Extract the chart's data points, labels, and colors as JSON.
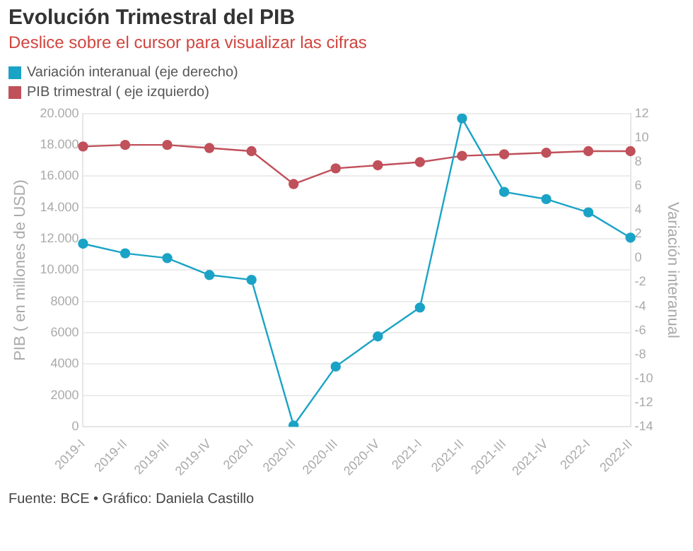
{
  "chart_data": {
    "type": "line",
    "title": "Evolución Trimestral del PIB",
    "subtitle": "Deslice sobre el cursor para visualizar las cifras",
    "ylabel": "PIB ( en millones de USD)",
    "y2label": "Variación interanual",
    "categories": [
      "2019-I",
      "2019-II",
      "2019-III",
      "2019-IV",
      "2020-I",
      "2020-II",
      "2020-III",
      "2020-IV",
      "2021-I",
      "2021-II",
      "2021-III",
      "2021-IV",
      "2022-I",
      "2022-II"
    ],
    "series": [
      {
        "name": "Variación interanual (eje derecho)",
        "color": "#1ba3c6",
        "axis": "y2",
        "values": [
          1.2,
          0.4,
          0.0,
          -1.4,
          -1.8,
          -13.9,
          -9.0,
          -6.5,
          -4.1,
          11.6,
          5.5,
          4.9,
          3.8,
          1.7
        ]
      },
      {
        "name": "PIB trimestral ( eje izquierdo)",
        "color": "#c0505a",
        "axis": "y",
        "values": [
          17900,
          18000,
          18000,
          17800,
          17600,
          15500,
          16500,
          16700,
          16900,
          17300,
          17400,
          17500,
          17600,
          17600
        ]
      }
    ],
    "ylim": [
      0,
      20000
    ],
    "yticks": [
      0,
      2000,
      4000,
      6000,
      8000,
      {
        "value": 10000,
        "label": "10.000"
      },
      {
        "value": 12000,
        "label": "12.000"
      },
      {
        "value": 14000,
        "label": "14.000"
      },
      {
        "value": 16000,
        "label": "16.000"
      },
      {
        "value": 18000,
        "label": "18.000"
      },
      {
        "value": 20000,
        "label": "20.000"
      }
    ],
    "y2lim": [
      -14,
      12
    ],
    "y2ticks": [
      -14,
      -12,
      -10,
      -8,
      -6,
      -4,
      -2,
      0,
      2,
      4,
      6,
      8,
      10,
      12
    ],
    "grid": "y",
    "legend": "top left",
    "marker": "circle",
    "line_style": "solid",
    "annotations": [
      "Fuente: BCE • Gráfico: Daniela Castillo"
    ]
  }
}
